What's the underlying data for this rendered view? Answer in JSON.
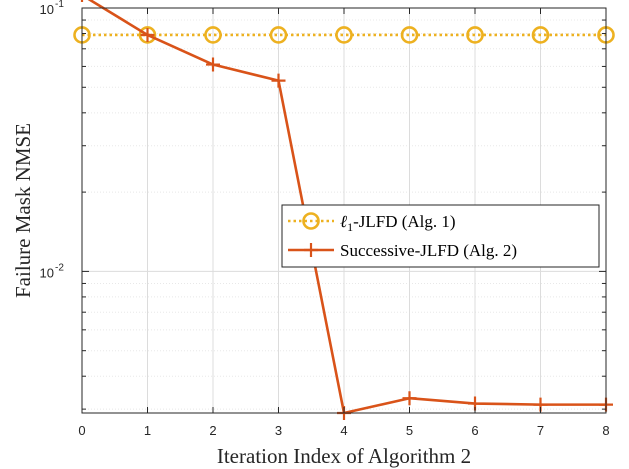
{
  "chart_data": {
    "type": "line",
    "title": "",
    "xlabel": "Iteration Index of Algorithm 2",
    "ylabel": "Failure Mask NMSE",
    "x": [
      0,
      1,
      2,
      3,
      4,
      5,
      6,
      7,
      8
    ],
    "xlim": [
      0,
      8
    ],
    "ylim": [
      0.0029,
      0.1
    ],
    "yscale": "log",
    "grid": true,
    "legend_position": "center-right",
    "x_ticks": [
      "0",
      "1",
      "2",
      "3",
      "4",
      "5",
      "6",
      "7",
      "8"
    ],
    "y_ticks": [
      {
        "value": 0.1,
        "base": "10",
        "exp": "-1"
      },
      {
        "value": 0.01,
        "base": "10",
        "exp": "-2"
      }
    ],
    "series": [
      {
        "name_prefix": "ℓ",
        "name_sub": "1",
        "name_suffix": "-JLFD (Alg. 1)",
        "color": "#EDB120",
        "line_style": "dotted",
        "marker": "circle",
        "values": [
          0.079,
          0.079,
          0.079,
          0.079,
          0.079,
          0.079,
          0.079,
          0.079,
          0.079
        ]
      },
      {
        "name": "Successive-JLFD (Alg. 2)",
        "color": "#D95319",
        "line_style": "solid",
        "marker": "plus",
        "values": [
          0.112,
          0.079,
          0.061,
          0.053,
          0.0029,
          0.0033,
          0.00315,
          0.00312,
          0.00312
        ]
      }
    ]
  }
}
